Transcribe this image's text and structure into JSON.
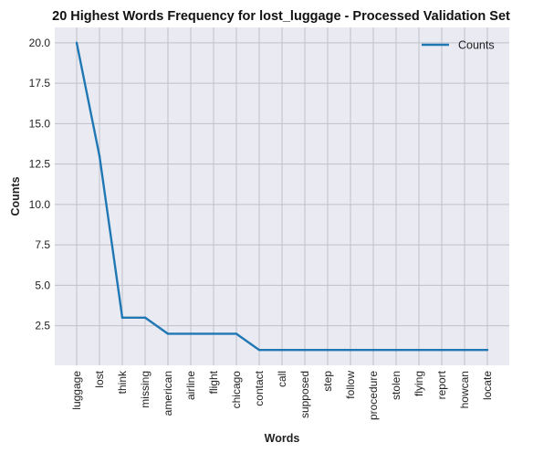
{
  "chart_data": {
    "type": "line",
    "title": "20 Highest Words Frequency for lost_luggage - Processed Validation Set",
    "xlabel": "Words",
    "ylabel": "Counts",
    "categories": [
      "luggage",
      "lost",
      "think",
      "missing",
      "american",
      "airline",
      "flight",
      "chicago",
      "contact",
      "call",
      "supposed",
      "step",
      "follow",
      "procedure",
      "stolen",
      "flying",
      "report",
      "howcan",
      "locate"
    ],
    "series": [
      {
        "name": "Counts",
        "values": [
          20,
          13,
          3,
          3,
          2,
          2,
          2,
          2,
          1,
          1,
          1,
          1,
          1,
          1,
          1,
          1,
          1,
          1,
          1
        ]
      }
    ],
    "yticks": [
      "2.5",
      "5.0",
      "7.5",
      "10.0",
      "12.5",
      "15.0",
      "17.5",
      "20.0"
    ],
    "ylim": [
      0.05,
      20.95
    ],
    "grid": true,
    "legend": "top-right",
    "colors": {
      "line": "#1f77b4",
      "plot_bg": "#eaeaf2",
      "grid": "#c0c0c8"
    }
  }
}
